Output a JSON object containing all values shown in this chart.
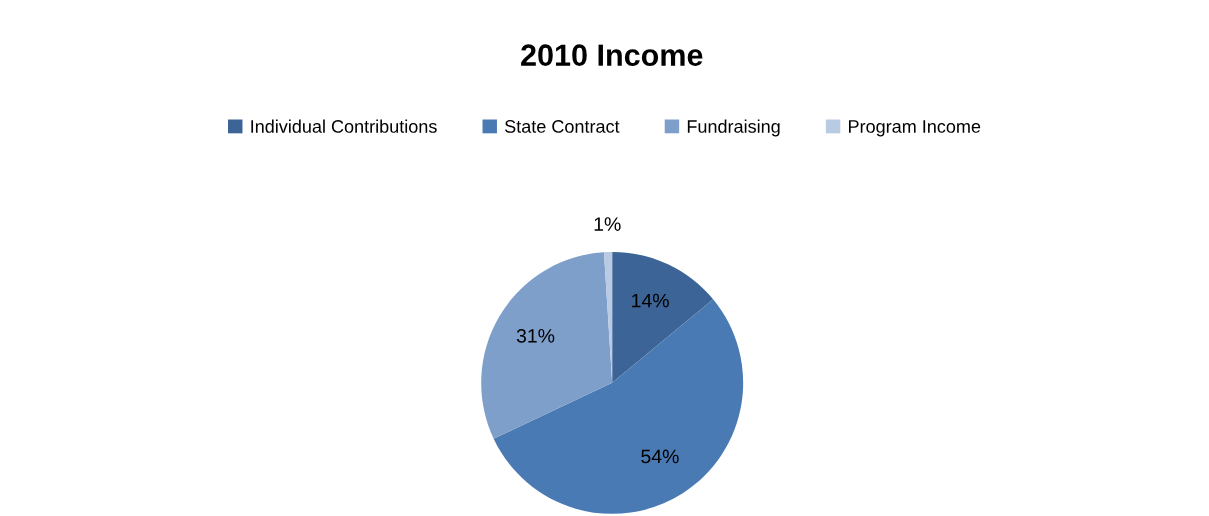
{
  "chart_data": {
    "type": "pie",
    "title": "2010 Income",
    "categories": [
      "Individual Contributions",
      "State Contract",
      "Fundraising",
      "Program Income"
    ],
    "values": [
      14,
      54,
      31,
      1
    ],
    "colors": [
      "#3c6496",
      "#4a7ab4",
      "#7f9fcb",
      "#b9cae3"
    ],
    "value_labels": [
      "14%",
      "54%",
      "31%",
      "1%"
    ],
    "legend": "top"
  }
}
